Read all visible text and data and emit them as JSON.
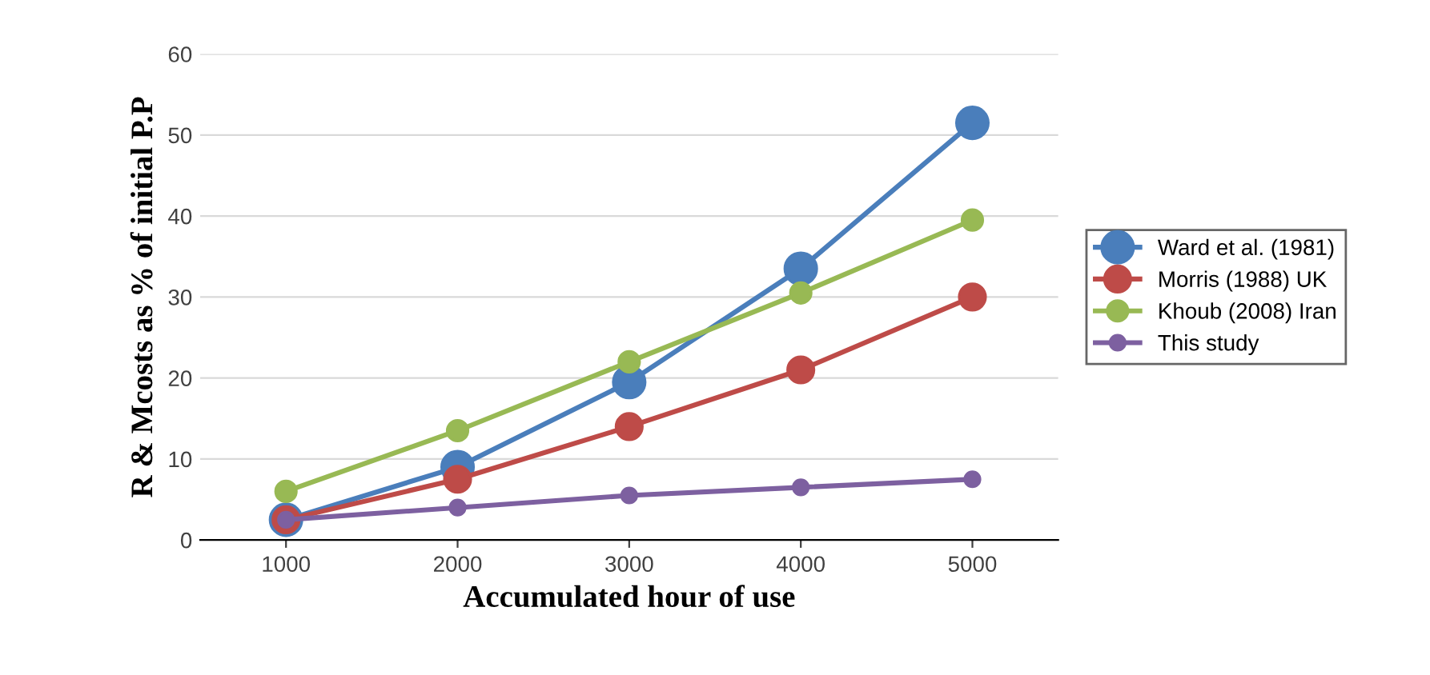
{
  "chart_data": {
    "type": "line",
    "xlabel": "Accumulated hour of use",
    "ylabel": "R & Mcosts as % of initial P.P",
    "categories": [
      "1000",
      "2000",
      "3000",
      "4000",
      "5000"
    ],
    "series": [
      {
        "name": "Ward et al. (1981)",
        "color": "#4a7ebb",
        "values": [
          2.5,
          9,
          19.5,
          33.5,
          51.5
        ]
      },
      {
        "name": "Morris (1988) UK",
        "color": "#be4b48",
        "values": [
          2.5,
          7.5,
          14,
          21,
          30
        ]
      },
      {
        "name": "Khoub (2008) Iran",
        "color": "#98b954",
        "values": [
          6,
          13.5,
          22,
          30.5,
          39.5
        ]
      },
      {
        "name": "This study",
        "color": "#7d60a0",
        "values": [
          2.5,
          4,
          5.5,
          6.5,
          7.5
        ]
      }
    ],
    "ylim": [
      0,
      60
    ],
    "yticks": [
      0,
      10,
      20,
      30,
      40,
      50,
      60
    ],
    "grid": "y",
    "legend": "right",
    "marker": "circle"
  }
}
